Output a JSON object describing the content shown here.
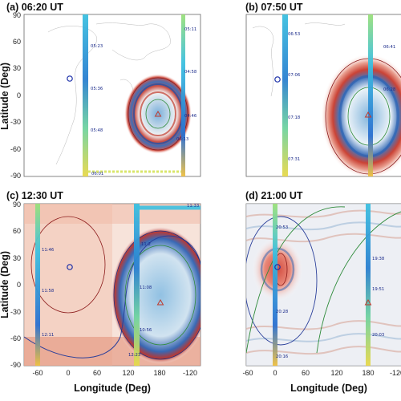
{
  "chart_data": [
    {
      "type": "map",
      "title": "(a) 06:20 UT",
      "ylabel": "Latitude (Deg)",
      "xlabel": "",
      "ylim": [
        -90,
        90
      ],
      "y_ticks": [
        "90",
        "60",
        "30",
        "0",
        "-30",
        "-60",
        "-90"
      ],
      "x_ticks": [],
      "dominant_color": "#cde3f0",
      "markers": {
        "circle": {
          "lon": 10,
          "lat": 20,
          "color": "#1a2ea8"
        },
        "triangle": {
          "lon": 180,
          "lat": -20,
          "color": "#c0392b"
        }
      },
      "tracks": [
        {
          "lon": 72,
          "labels": [
            {
              "text": "05:23",
              "lat": 62
            },
            {
              "text": "05:36",
              "lat": 10
            },
            {
              "text": "05:48",
              "lat": -40
            },
            {
              "text": "06:01",
              "lat": -88
            }
          ]
        },
        {
          "lon": 232,
          "labels": [
            {
              "text": "05:11",
              "lat": 80
            },
            {
              "text": "04:58",
              "lat": 28
            },
            {
              "text": "04:46",
              "lat": -25
            },
            {
              "text": "06:13",
              "lat": -50
            }
          ]
        }
      ]
    },
    {
      "type": "map",
      "title": "(b) 07:50 UT",
      "ylabel": "",
      "xlabel": "",
      "ylim": [
        -90,
        90
      ],
      "y_ticks": [],
      "x_ticks": [],
      "markers": {
        "circle": {
          "lon": 10,
          "lat": 20,
          "color": "#1a2ea8"
        },
        "triangle": {
          "lon": 180,
          "lat": -20,
          "color": "#c0392b"
        }
      },
      "tracks": [
        {
          "lon": 72,
          "labels": [
            {
              "text": "06:53",
              "lat": 75
            },
            {
              "text": "07:06",
              "lat": 25
            },
            {
              "text": "07:18",
              "lat": -25
            },
            {
              "text": "07:31",
              "lat": -72
            }
          ]
        },
        {
          "lon": 232,
          "labels": [
            {
              "text": "06:41",
              "lat": 60
            },
            {
              "text": "06:28",
              "lat": 10
            }
          ]
        }
      ]
    },
    {
      "type": "map",
      "title": "(c) 12:30 UT",
      "ylabel": "Latitude (Deg)",
      "xlabel": "",
      "ylim": [
        -90,
        90
      ],
      "y_ticks": [
        "90",
        "60",
        "30",
        "0",
        "-30",
        "-60",
        "-90"
      ],
      "x_ticks": [],
      "markers": {
        "circle": {
          "lon": 10,
          "lat": 20,
          "color": "#1a2ea8"
        },
        "triangle": {
          "lon": 180,
          "lat": -20,
          "color": "#c0392b"
        }
      },
      "tracks": [
        {
          "lon": -50,
          "labels": [
            {
              "text": "11:46",
              "lat": 40
            },
            {
              "text": "11:58",
              "lat": -5
            },
            {
              "text": "12:11",
              "lat": -65
            }
          ]
        },
        {
          "lon": 140,
          "labels": [
            {
              "text": "11:2",
              "lat": 48
            },
            {
              "text": "11:08",
              "lat": -2
            },
            {
              "text": "10:56",
              "lat": -50
            },
            {
              "text": "12:23",
              "lat": -82
            }
          ]
        },
        {
          "lon": 290,
          "labels": [
            {
              "text": "11:33",
              "lat": 88
            }
          ]
        }
      ]
    },
    {
      "type": "map",
      "title": "(d) 21:00 UT",
      "ylabel": "",
      "xlabel": "Longitude (Deg)",
      "ylim": [
        -90,
        90
      ],
      "y_ticks": [],
      "x_ticks": [
        "-60",
        "0",
        "60",
        "120",
        "180",
        "-120"
      ],
      "markers": {
        "circle": {
          "lon": 2,
          "lat": 20,
          "color": "#1a2ea8"
        },
        "triangle": {
          "lon": 180,
          "lat": -20,
          "color": "#c0392b"
        }
      },
      "tracks": [
        {
          "lon": 0,
          "labels": [
            {
              "text": "20:53",
              "lat": 70
            },
            {
              "text": "20:28",
              "lat": -20
            },
            {
              "text": "20:16",
              "lat": -85
            }
          ]
        },
        {
          "lon": 180,
          "labels": [
            {
              "text": "19:38",
              "lat": 30
            },
            {
              "text": "19:51",
              "lat": -5
            },
            {
              "text": "20:03",
              "lat": -60
            }
          ]
        }
      ]
    }
  ],
  "shared_x_ticks_c": [
    "-60",
    "0",
    "60",
    "120",
    "180",
    "-120"
  ],
  "shared_xlabel": "Longitude (Deg)"
}
